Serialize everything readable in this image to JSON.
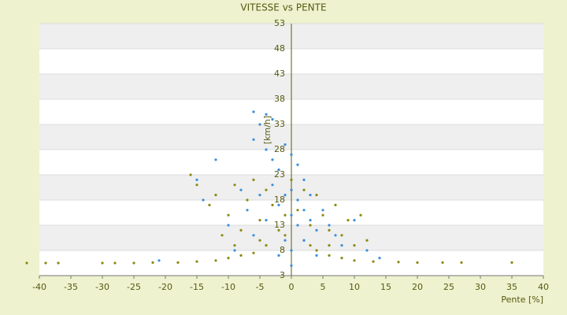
{
  "chart_data": {
    "type": "scatter",
    "title": "VITESSE vs PENTE",
    "x_label": "Pente [%]",
    "y_label": "[km/h]",
    "xlim": [
      -40,
      40
    ],
    "xticks": [
      -40,
      -35,
      -30,
      -25,
      -20,
      -15,
      -10,
      -5,
      0,
      5,
      10,
      15,
      20,
      25,
      30,
      35,
      40
    ],
    "ylim": [
      3,
      53
    ],
    "yticks": [
      3,
      8,
      13,
      18,
      23,
      28,
      33,
      38,
      43,
      48,
      53
    ],
    "grid": true,
    "series": [
      {
        "color": "#8a8a10",
        "x": [
          -42,
          -39,
          -37,
          -30,
          -28,
          -25,
          -22,
          -18,
          -15,
          -12,
          -10,
          -8,
          -6,
          -4,
          -2,
          -1,
          2,
          4,
          6,
          8,
          10,
          13,
          17,
          20,
          24,
          27,
          35,
          -16,
          -15,
          -13,
          -12,
          -10,
          -9,
          -8,
          -7,
          -6,
          -5,
          -4,
          -3,
          -2,
          -1,
          0,
          1,
          2,
          3,
          4,
          5,
          6,
          7,
          8,
          9,
          10,
          11,
          12,
          -9,
          -11,
          3,
          6,
          -5
        ],
        "values": [
          5.5,
          5.5,
          5.5,
          5.5,
          5.5,
          5.5,
          5.6,
          5.6,
          5.8,
          6,
          6.5,
          7,
          7.5,
          9,
          12,
          15,
          10,
          8,
          7,
          6.5,
          6,
          5.8,
          5.7,
          5.6,
          5.6,
          5.6,
          5.6,
          23,
          21,
          17,
          19,
          15,
          21,
          12,
          18,
          22,
          14,
          20,
          17,
          24,
          11,
          22,
          16,
          20,
          13,
          19,
          15,
          12,
          17,
          11,
          14,
          9,
          15,
          10,
          9,
          11,
          9,
          9,
          10
        ]
      },
      {
        "color": "#3a8fd9",
        "x": [
          -6,
          -5,
          -4,
          -3,
          -6,
          -4,
          -3,
          -2,
          -1,
          0,
          1,
          2,
          -15,
          -14,
          -12,
          -10,
          -8,
          -7,
          -6,
          -5,
          -4,
          -3,
          -2,
          -1,
          0,
          0,
          1,
          1,
          2,
          3,
          3,
          4,
          5,
          6,
          7,
          8,
          10,
          12,
          -1,
          0,
          2,
          -2,
          4,
          -21,
          14,
          -9,
          0
        ],
        "values": [
          35.5,
          33,
          35,
          34,
          30,
          28,
          26,
          24,
          29,
          27,
          25,
          22,
          22,
          18,
          26,
          13,
          20,
          16,
          11,
          19,
          14,
          21,
          17,
          19,
          15,
          20,
          13,
          18,
          16,
          14,
          19,
          12,
          16,
          13,
          11,
          9,
          14,
          8,
          10,
          8,
          10,
          7,
          7,
          6,
          6.5,
          8,
          5
        ]
      }
    ]
  }
}
